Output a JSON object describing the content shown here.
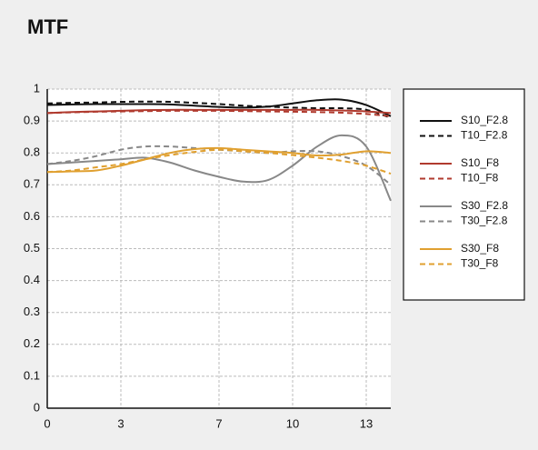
{
  "chart_data": {
    "type": "line",
    "title": "MTF",
    "x": [
      0,
      1,
      2,
      3,
      4,
      5,
      6,
      7,
      8,
      9,
      10,
      11,
      12,
      13,
      14
    ],
    "xlim": [
      0,
      14
    ],
    "xticks": [
      0,
      3,
      7,
      10,
      13
    ],
    "ylim": [
      0,
      1
    ],
    "yticks": [
      0,
      0.1,
      0.2,
      0.3,
      0.4,
      0.5,
      0.6,
      0.7,
      0.8,
      0.9,
      1
    ],
    "grid": true,
    "legend": "right",
    "series": [
      {
        "name": "S10_F2.8",
        "color": "#111111",
        "dashed": false,
        "values": [
          0.95,
          0.952,
          0.953,
          0.953,
          0.953,
          0.952,
          0.948,
          0.944,
          0.942,
          0.945,
          0.955,
          0.965,
          0.967,
          0.95,
          0.915
        ]
      },
      {
        "name": "T10_F2.8",
        "color": "#111111",
        "dashed": true,
        "values": [
          0.955,
          0.957,
          0.958,
          0.96,
          0.961,
          0.96,
          0.957,
          0.953,
          0.948,
          0.945,
          0.942,
          0.94,
          0.94,
          0.935,
          0.91
        ]
      },
      {
        "name": "S10_F8",
        "color": "#b03a2e",
        "dashed": false,
        "values": [
          0.925,
          0.928,
          0.93,
          0.932,
          0.934,
          0.935,
          0.935,
          0.935,
          0.935,
          0.935,
          0.935,
          0.935,
          0.933,
          0.93,
          0.925
        ]
      },
      {
        "name": "T10_F8",
        "color": "#b03a2e",
        "dashed": true,
        "values": [
          0.925,
          0.927,
          0.929,
          0.93,
          0.931,
          0.932,
          0.932,
          0.932,
          0.931,
          0.93,
          0.929,
          0.928,
          0.926,
          0.922,
          0.915
        ]
      },
      {
        "name": "S30_F2.8",
        "color": "#888888",
        "dashed": false,
        "values": [
          0.765,
          0.77,
          0.775,
          0.78,
          0.785,
          0.77,
          0.745,
          0.725,
          0.71,
          0.715,
          0.76,
          0.82,
          0.855,
          0.82,
          0.65
        ]
      },
      {
        "name": "T30_F2.8",
        "color": "#888888",
        "dashed": true,
        "values": [
          0.765,
          0.775,
          0.79,
          0.81,
          0.82,
          0.82,
          0.815,
          0.81,
          0.805,
          0.8,
          0.805,
          0.805,
          0.79,
          0.76,
          0.7
        ]
      },
      {
        "name": "S30_F8",
        "color": "#e0a030",
        "dashed": false,
        "values": [
          0.74,
          0.742,
          0.745,
          0.76,
          0.78,
          0.8,
          0.812,
          0.815,
          0.81,
          0.805,
          0.8,
          0.792,
          0.795,
          0.805,
          0.8
        ]
      },
      {
        "name": "T30_F8",
        "color": "#e0a030",
        "dashed": true,
        "values": [
          0.74,
          0.745,
          0.755,
          0.765,
          0.78,
          0.793,
          0.803,
          0.81,
          0.805,
          0.8,
          0.793,
          0.785,
          0.775,
          0.76,
          0.735
        ]
      }
    ]
  }
}
